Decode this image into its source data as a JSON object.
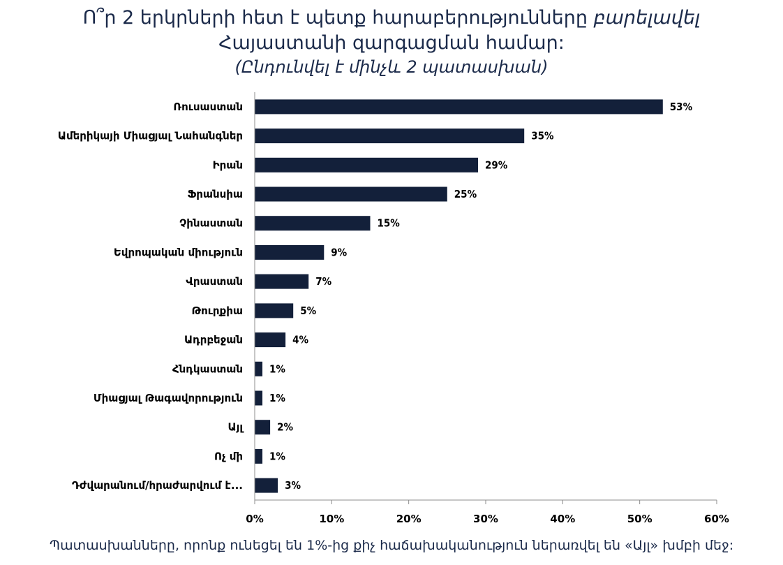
{
  "title": {
    "line1_main": "Ո՞ր 2 երկրների հետ է պետք հարաբերությունները ",
    "line1_italic": "բարելավել",
    "line2": "Հայաստանի զարգացման համար:",
    "line3": "(Ընդունվել է մինչև  2 պատասխան)"
  },
  "footnote": "Պատասխանները, որոնք ունեցել են 1%-ից քիչ հաճախականություն ներառվել են «Այլ» խմբի մեջ:",
  "colors": {
    "bar": "#13203a",
    "axis": "#8c8c8c",
    "title": "#1b2a4a"
  },
  "chart_data": {
    "type": "bar",
    "orientation": "horizontal",
    "categories": [
      "Ռուսաստան",
      "Ամերիկայի Միացյալ Նահանգներ",
      "Իրան",
      "Ֆրանսիա",
      "Չինաստան",
      "Եվրոպական միություն",
      "Վրաստան",
      "Թուրքիա",
      "Ադրբեջան",
      "Հնդկաստան",
      "Միացյալ Թագավորություն",
      "Այլ",
      "Ոչ մի",
      "Դժվարանում/հրաժարվում է..."
    ],
    "values": [
      53,
      35,
      29,
      25,
      15,
      9,
      7,
      5,
      4,
      1,
      1,
      2,
      1,
      3
    ],
    "value_labels": [
      "53%",
      "35%",
      "29%",
      "25%",
      "15%",
      "9%",
      "7%",
      "5%",
      "4%",
      "1%",
      "1%",
      "2%",
      "1%",
      "3%"
    ],
    "xlim": [
      0,
      60
    ],
    "xticks": [
      0,
      10,
      20,
      30,
      40,
      50,
      60
    ],
    "xtick_labels": [
      "0%",
      "10%",
      "20%",
      "30%",
      "40%",
      "50%",
      "60%"
    ],
    "grid": false
  }
}
